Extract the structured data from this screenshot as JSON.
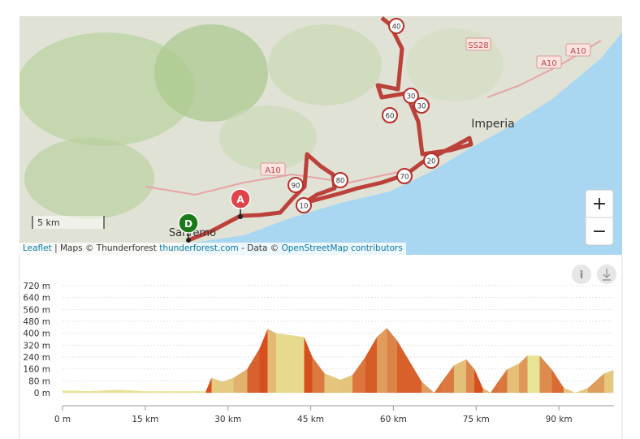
{
  "map": {
    "place_labels": [
      "Imperia",
      "Sanremo"
    ],
    "road_labels": [
      "SS28",
      "A10",
      "A10",
      "A10"
    ],
    "km_markers": [
      "40",
      "30",
      "30",
      "60",
      "20",
      "70",
      "90",
      "80",
      "10"
    ],
    "start_marker": "A",
    "end_marker": "D",
    "zoom_in": "+",
    "zoom_out": "−",
    "scale": "5 km",
    "attribution": [
      "Leaflet",
      "| Maps © Thunderforest",
      "thunderforest.com",
      "- Data ©",
      "OpenStreetMap contributors"
    ]
  },
  "toolbar": {
    "info": "i"
  },
  "chart_data": {
    "type": "area",
    "x": [
      0,
      5,
      10,
      15,
      20,
      26,
      27,
      29,
      31,
      33.5,
      35.7,
      37.2,
      38.7,
      43.8,
      45.3,
      47.5,
      50.4,
      52.6,
      54.9,
      57,
      58.8,
      60.7,
      62.9,
      65.1,
      67.4,
      68.8,
      71,
      73.2,
      74.7,
      76.2,
      77.6,
      79,
      80.6,
      82.8,
      84.3,
      86.5,
      88.7,
      90.9,
      93,
      95.3,
      98.2,
      99.9
    ],
    "values": [
      15,
      10,
      20,
      10,
      10,
      10,
      100,
      75,
      100,
      160,
      295,
      430,
      400,
      375,
      240,
      130,
      87,
      120,
      240,
      375,
      436,
      350,
      213,
      76,
      0,
      76,
      185,
      224,
      158,
      33,
      0,
      76,
      158,
      196,
      250,
      250,
      158,
      33,
      0,
      33,
      130,
      153
    ],
    "xlim": [
      0,
      100
    ],
    "ylim": [
      0,
      720
    ],
    "xticks": [
      {
        "value": 0,
        "label": "0 m"
      },
      {
        "value": 15,
        "label": "15 km"
      },
      {
        "value": 30,
        "label": "30 km"
      },
      {
        "value": 45,
        "label": "45 km"
      },
      {
        "value": 60,
        "label": "60 km"
      },
      {
        "value": 75,
        "label": "75 km"
      },
      {
        "value": 90,
        "label": "90 km"
      }
    ],
    "yticks": [
      {
        "value": 0,
        "label": "0 m"
      },
      {
        "value": 80,
        "label": "80 m"
      },
      {
        "value": 160,
        "label": "160 m"
      },
      {
        "value": 240,
        "label": "240 m"
      },
      {
        "value": 320,
        "label": "320 m"
      },
      {
        "value": 400,
        "label": "400 m"
      },
      {
        "value": 480,
        "label": "480 m"
      },
      {
        "value": 560,
        "label": "560 m"
      },
      {
        "value": 640,
        "label": "640 m"
      },
      {
        "value": 720,
        "label": "720 m"
      }
    ],
    "grid": true
  }
}
